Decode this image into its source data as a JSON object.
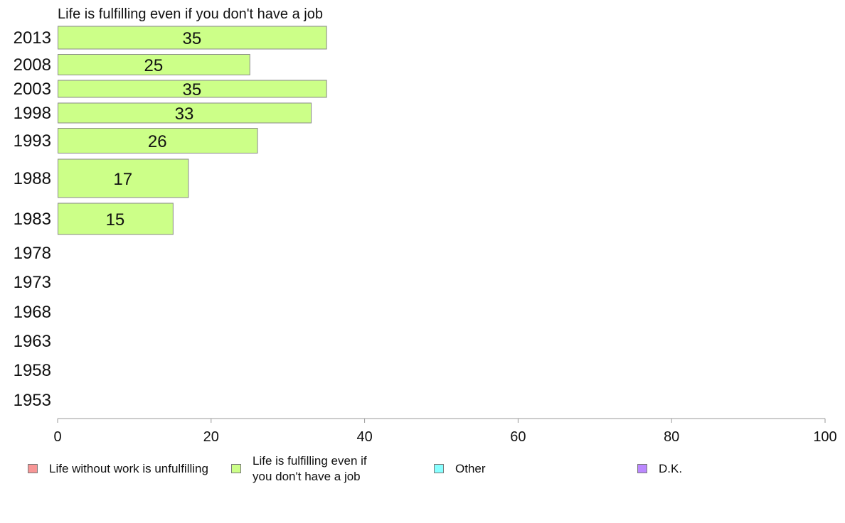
{
  "chart_data": {
    "type": "bar",
    "orientation": "horizontal",
    "title": "Life is fulfilling even if you don't have a job",
    "categories": [
      "2013",
      "2008",
      "2003",
      "1998",
      "1993",
      "1988",
      "1983",
      "1978",
      "1973",
      "1968",
      "1963",
      "1958",
      "1953"
    ],
    "series": [
      {
        "name": "Life is fulfilling even if you don't have a job",
        "color": "#ccff88",
        "values": [
          35,
          25,
          35,
          33,
          26,
          17,
          15,
          null,
          null,
          null,
          null,
          null,
          null
        ],
        "data_labels": [
          "35",
          "25",
          "35",
          "33",
          "26",
          "17",
          "15",
          "",
          "",
          "",
          "",
          "",
          ""
        ]
      }
    ],
    "xlim": [
      0,
      100
    ],
    "xticks": [
      0,
      20,
      40,
      60,
      80,
      100
    ],
    "xlabel": "",
    "ylabel": "",
    "grid": false,
    "legend_position": "bottom",
    "legend": [
      {
        "label": "Life without work is unfulfilling",
        "color": "#f79696"
      },
      {
        "label": "Life is fulfilling even if\nyou don't have a job",
        "color": "#ccff88"
      },
      {
        "label": "Other",
        "color": "#88ffff"
      },
      {
        "label": "D.K.",
        "color": "#bb88ff"
      }
    ]
  }
}
